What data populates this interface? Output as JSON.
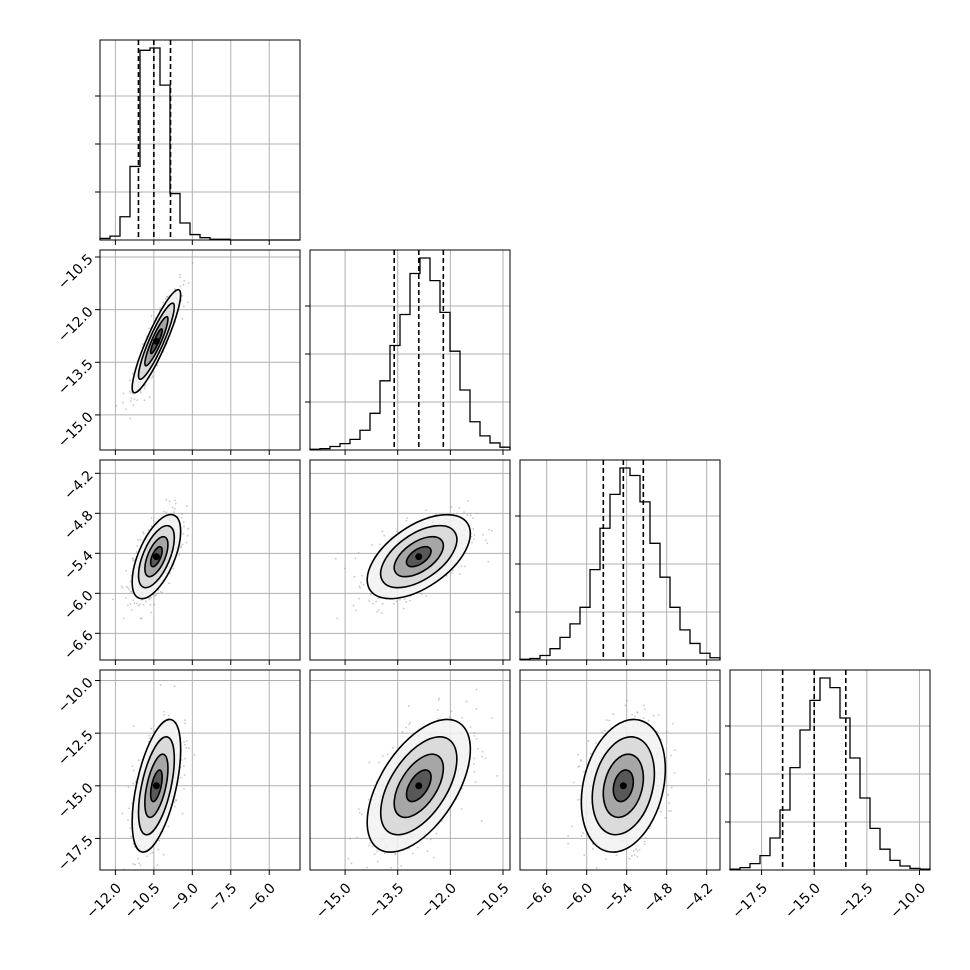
{
  "chart_data": {
    "type": "scatter",
    "kind": "corner-plot",
    "grid": true,
    "colors": {
      "ink": "#000000",
      "grid": "#b0b0b0",
      "points": "#9a9a9a",
      "background": "#ffffff"
    },
    "parameters": [
      {
        "range": [
          -12.6,
          -4.8
        ],
        "ticks": [
          "-12.0",
          "-10.5",
          "-9.0",
          "-7.5",
          "-6.0"
        ],
        "quantiles": [
          -11.1,
          -10.5,
          -9.85
        ],
        "hist_counts": [
          2,
          5,
          30,
          95,
          245,
          248,
          200,
          60,
          22,
          7,
          3,
          1,
          1,
          0,
          0,
          0,
          0,
          0,
          0,
          0
        ]
      },
      {
        "range": [
          -16.0,
          -10.3
        ],
        "ticks": [
          "-10.5",
          "-12.0",
          "-13.5",
          "-15.0"
        ],
        "quantiles": [
          -13.6,
          -12.9,
          -12.2
        ],
        "hist_counts": [
          1,
          2,
          5,
          9,
          15,
          28,
          52,
          98,
          148,
          192,
          250,
          272,
          240,
          195,
          140,
          85,
          40,
          20,
          10,
          4
        ]
      },
      {
        "range": [
          -7.0,
          -4.0
        ],
        "ticks": [
          "-4.2",
          "-4.8",
          "-5.4",
          "-6.0",
          "-6.6"
        ],
        "quantiles": [
          -5.75,
          -5.45,
          -5.15
        ],
        "hist_counts": [
          1,
          2,
          6,
          15,
          30,
          48,
          70,
          120,
          175,
          220,
          255,
          245,
          210,
          155,
          110,
          70,
          40,
          22,
          9,
          3
        ]
      },
      {
        "range": [
          -19.0,
          -9.5
        ],
        "ticks": [
          "-10.0",
          "-12.5",
          "-15.0",
          "-17.5"
        ],
        "quantiles": [
          -16.5,
          -15.0,
          -13.5
        ],
        "hist_counts": [
          1,
          3,
          8,
          18,
          40,
          75,
          128,
          175,
          212,
          240,
          228,
          190,
          140,
          90,
          52,
          26,
          12,
          5,
          2,
          1
        ]
      }
    ],
    "correlations": {
      "1-0": 0.9,
      "2-0": 0.6,
      "2-1": 0.55,
      "3-0": 0.55,
      "3-1": 0.55,
      "3-2": 0.25
    },
    "centers": [
      -10.4,
      -12.9,
      -5.45,
      -15.0
    ],
    "spreads": [
      0.45,
      0.7,
      0.3,
      1.5
    ]
  }
}
